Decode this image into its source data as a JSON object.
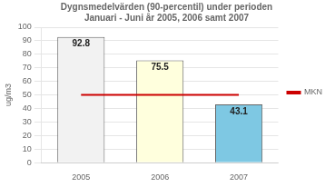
{
  "chart_data": {
    "type": "bar",
    "title": "Dygnsmedelvärden (90-percentil) under perioden\nJanuari - Juni år 2005, 2006 samt 2007",
    "categories": [
      "2005",
      "2006",
      "2007"
    ],
    "series": [
      {
        "type": "bar",
        "values": [
          92.8,
          75.5,
          43.1
        ],
        "colors": [
          "#f2f2f2",
          "#ffffdd",
          "#7ec8e3"
        ]
      },
      {
        "type": "line",
        "name": "MKN",
        "color": "#cc0000",
        "values": [
          50,
          50,
          50
        ]
      }
    ],
    "ylabel": "ug/m3",
    "ylim": [
      0,
      100
    ],
    "yticks": [
      0,
      10,
      20,
      30,
      40,
      50,
      60,
      70,
      80,
      90,
      100
    ],
    "grid": true,
    "legend": "right",
    "data_labels": true
  }
}
